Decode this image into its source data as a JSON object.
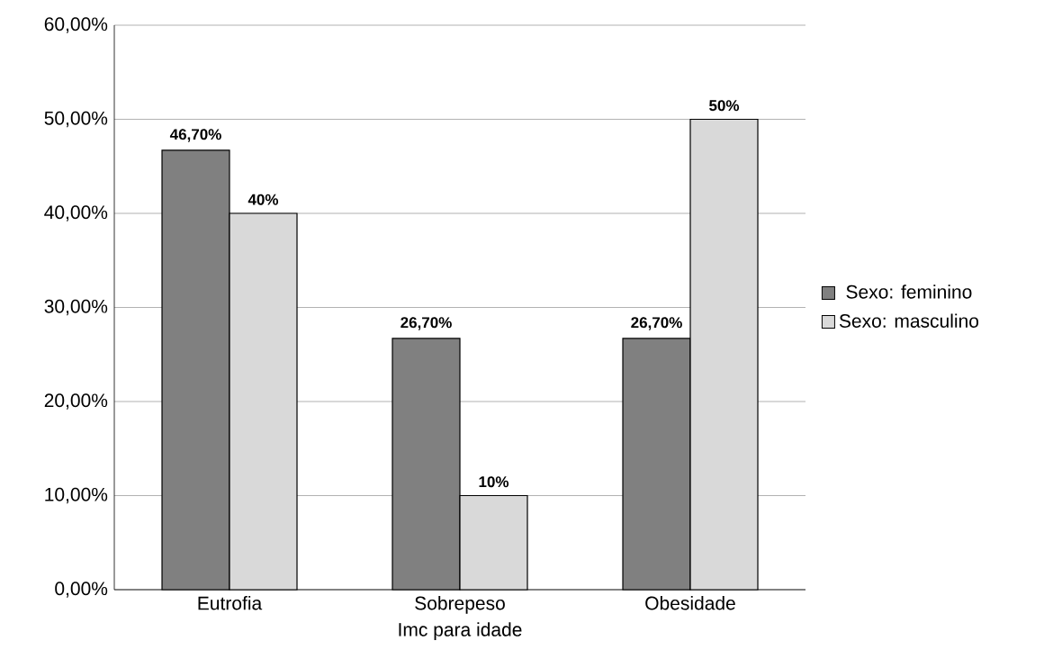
{
  "chart_data": {
    "type": "bar",
    "xlabel": "Imc para idade",
    "categories": [
      "Eutrofia",
      "Sobrepeso",
      "Obesidade"
    ],
    "series": [
      {
        "name": "Sexo: feminino",
        "color": "#808080",
        "values": [
          46.7,
          26.7,
          26.7
        ],
        "value_labels": [
          "46,70%",
          "26,70%",
          "26,70%"
        ]
      },
      {
        "name": "Sexo: masculino",
        "color": "#d9d9d9",
        "values": [
          40,
          10,
          50
        ],
        "value_labels": [
          "40%",
          "10%",
          "50%"
        ]
      }
    ],
    "ylim": [
      0,
      60
    ],
    "yticks": [
      {
        "value": 0,
        "label": "0,00%"
      },
      {
        "value": 10,
        "label": "10,00%"
      },
      {
        "value": 20,
        "label": "20,00%"
      },
      {
        "value": 30,
        "label": "30,00%"
      },
      {
        "value": 40,
        "label": "40,00%"
      },
      {
        "value": 50,
        "label": "50,00%"
      },
      {
        "value": 60,
        "label": "60,00%"
      }
    ],
    "grid": "y",
    "legend": "right"
  }
}
